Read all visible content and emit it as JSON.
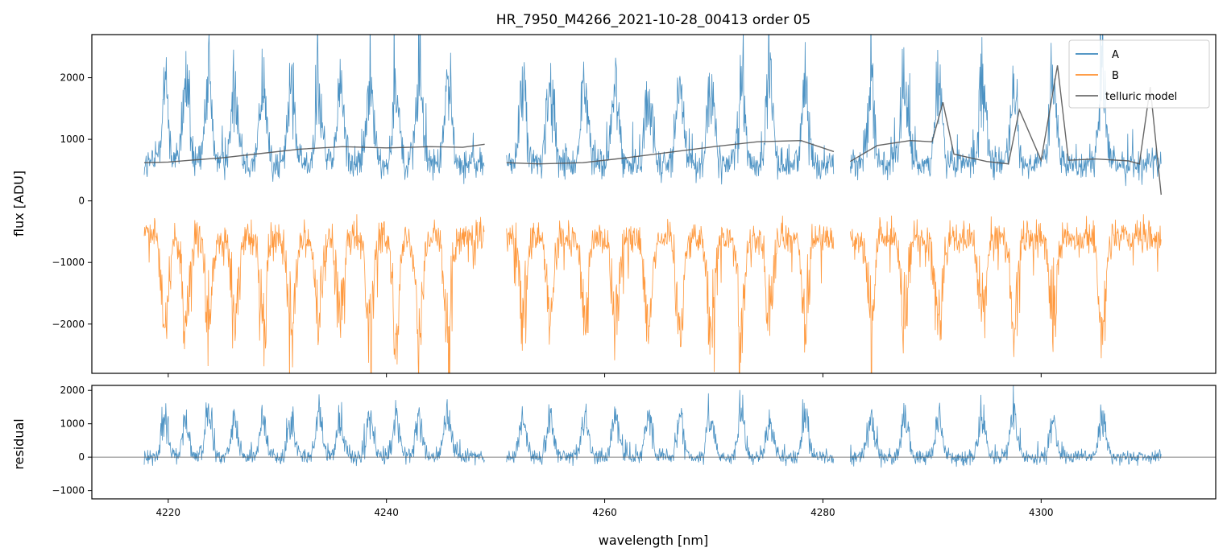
{
  "chart_data": [
    {
      "type": "line",
      "title": "HR_7950_M4266_2021-10-28_00413  order 05",
      "xlabel": "",
      "ylabel": "flux [ADU]",
      "xlim": [
        4213.0,
        4316.0
      ],
      "ylim": [
        -2800,
        2700
      ],
      "yticks": [
        -2000,
        -1000,
        0,
        1000,
        2000
      ],
      "yticklabels": [
        "−2000",
        "−1000",
        "0",
        "1000",
        "2000"
      ],
      "xticks": [
        4220,
        4240,
        4260,
        4280,
        4300
      ],
      "legend_position": "top-right",
      "gaps": [
        [
          4249.0,
          4251.0
        ],
        [
          4281.0,
          4282.5
        ]
      ],
      "x_start": 4217.8,
      "x_end": 4311.0,
      "line_centers": [
        4219.7,
        4221.6,
        4223.7,
        4226.1,
        4228.7,
        4231.3,
        4233.8,
        4235.8,
        4238.5,
        4240.9,
        4243.0,
        4245.6,
        4252.5,
        4255.0,
        4258.2,
        4261.0,
        4264.0,
        4266.9,
        4269.7,
        4272.5,
        4275.1,
        4278.4,
        4284.4,
        4287.5,
        4290.6,
        4294.6,
        4297.5,
        4301.1,
        4305.6
      ],
      "series": [
        {
          "name": "A",
          "color": "#1f77b4",
          "baseline": 600,
          "noise": 380,
          "emission": true
        },
        {
          "name": "B",
          "color": "#ff7f0e",
          "baseline": -600,
          "noise": 380,
          "emission": false
        },
        {
          "name": "telluric model",
          "color": "#555555",
          "x": [
            4217.8,
            4220,
            4222,
            4225,
            4228,
            4232,
            4236,
            4240,
            4244,
            4247,
            4249,
            4251,
            4254,
            4258,
            4262,
            4266,
            4270,
            4274,
            4278,
            4281,
            4282.5,
            4285,
            4288,
            4290,
            4291,
            4292,
            4295,
            4297,
            4298,
            4300,
            4301.5,
            4302.5,
            4305,
            4308,
            4309,
            4310,
            4311
          ],
          "y": [
            620,
            630,
            660,
            700,
            760,
            840,
            880,
            860,
            880,
            870,
            920,
            620,
            600,
            620,
            700,
            790,
            880,
            960,
            980,
            800,
            640,
            900,
            980,
            960,
            1600,
            760,
            640,
            600,
            1480,
            660,
            2200,
            660,
            680,
            650,
            600,
            1850,
            100
          ]
        }
      ]
    },
    {
      "type": "line",
      "title": "",
      "xlabel": "wavelength [nm]",
      "ylabel": "residual",
      "xlim": [
        4213.0,
        4316.0
      ],
      "ylim": [
        -1250,
        2150
      ],
      "yticks": [
        -1000,
        0,
        1000,
        2000
      ],
      "yticklabels": [
        "−1000",
        "0",
        "1000",
        "2000"
      ],
      "xticks": [
        4220,
        4240,
        4260,
        4280,
        4300
      ],
      "xticklabels": [
        "4220",
        "4240",
        "4260",
        "4280",
        "4300"
      ],
      "zero_line": true,
      "series": [
        {
          "name": "",
          "color": "#1f77b4",
          "baseline": 0,
          "noise": 320,
          "emission": true
        }
      ]
    }
  ]
}
